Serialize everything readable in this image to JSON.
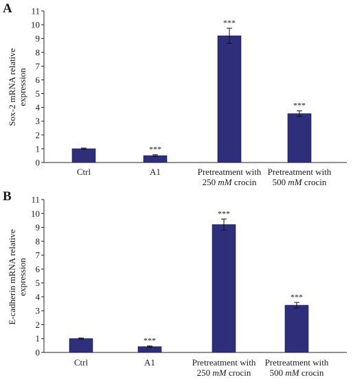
{
  "chart_data": [
    {
      "panel": "A",
      "type": "bar",
      "ylabel": "Sox-2 mRNA relative expression",
      "ylabel_lines": [
        "Sox-2 mRNA relative",
        "expression"
      ],
      "ylim": [
        0,
        11
      ],
      "yticks": [
        0,
        1,
        2,
        3,
        4,
        5,
        6,
        7,
        8,
        9,
        10,
        11
      ],
      "categories": [
        "Ctrl",
        "A1",
        "Pretreatment with 250 mM crocin",
        "Pretreatment with 500 mM crocin"
      ],
      "category_lines": [
        [
          {
            "t": "Ctrl"
          }
        ],
        [
          {
            "t": "A1"
          }
        ],
        [
          {
            "t": "Pretreatment with"
          },
          {
            "t": "250 "
          },
          {
            "t": "mM",
            "i": true
          },
          {
            "t": " crocin"
          }
        ],
        [
          {
            "t": "Pretreatment with"
          },
          {
            "t": "500 "
          },
          {
            "t": "mM",
            "i": true
          },
          {
            "t": " crocin"
          }
        ]
      ],
      "values": [
        1.0,
        0.5,
        9.2,
        3.55
      ],
      "errors": [
        0.05,
        0.06,
        0.55,
        0.2
      ],
      "annotations": [
        "",
        "***",
        "***",
        "***"
      ],
      "bar_color": "#2e2e7a",
      "grid": false
    },
    {
      "panel": "B",
      "type": "bar",
      "ylabel": "E-cadherin mRNA relative expression",
      "ylabel_lines": [
        "E-cadherin mRNA relative",
        "expression"
      ],
      "ylim": [
        0,
        11
      ],
      "yticks": [
        0,
        1,
        2,
        3,
        4,
        5,
        6,
        7,
        8,
        9,
        10,
        11
      ],
      "categories": [
        "Ctrl",
        "A1",
        "Pretreatment with 250 mM crocin",
        "Pretreatment with 500 mM crocin"
      ],
      "category_lines": [
        [
          {
            "t": "Ctrl"
          }
        ],
        [
          {
            "t": "A1"
          }
        ],
        [
          {
            "t": "Pretreatment with"
          },
          {
            "t": "250 "
          },
          {
            "t": "mM",
            "i": true
          },
          {
            "t": " crocin"
          }
        ],
        [
          {
            "t": "Pretreatment with"
          },
          {
            "t": "500 "
          },
          {
            "t": "mM",
            "i": true
          },
          {
            "t": " crocin"
          }
        ]
      ],
      "values": [
        1.0,
        0.42,
        9.2,
        3.4
      ],
      "errors": [
        0.04,
        0.05,
        0.4,
        0.2
      ],
      "annotations": [
        "",
        "***",
        "***",
        "***"
      ],
      "bar_color": "#2e2e7a",
      "grid": false
    }
  ]
}
